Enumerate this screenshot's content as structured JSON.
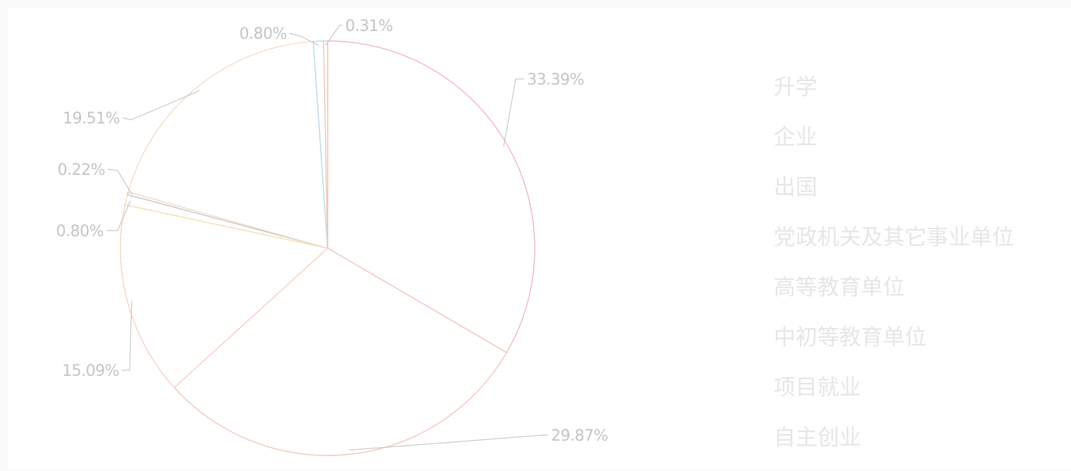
{
  "chart_data": {
    "type": "pie",
    "categories": [
      "升学",
      "企业",
      "出国",
      "党政机关及其它事业单位",
      "高等教育单位",
      "中初等教育单位",
      "项目就业",
      "自主创业"
    ],
    "slices": [
      {
        "value": 33.39,
        "label": "33.39%"
      },
      {
        "value": 29.87,
        "label": "29.87%"
      },
      {
        "value": 15.09,
        "label": "15.09%"
      },
      {
        "value": 0.8,
        "label": "0.80%"
      },
      {
        "value": 0.22,
        "label": "0.22%"
      },
      {
        "value": 19.51,
        "label": "19.51%"
      },
      {
        "value": 0.8,
        "label": "0.80%"
      },
      {
        "value": 0.31,
        "label": "0.31%"
      }
    ],
    "colors": [
      "#f0b9bd",
      "#f0c6bd",
      "#f6d2c0",
      "#f2e2b5",
      "#c9c2cc",
      "#f6dcc6",
      "#b6dbe8",
      "#f0c6b5"
    ],
    "start_angle": "top",
    "direction": "clockwise",
    "legend": "right"
  }
}
